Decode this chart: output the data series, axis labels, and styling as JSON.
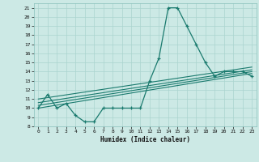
{
  "xlabel": "Humidex (Indice chaleur)",
  "background_color": "#cce9e5",
  "grid_color": "#aad4cf",
  "line_color": "#1a7a6e",
  "xlim": [
    -0.5,
    23.5
  ],
  "ylim": [
    8,
    21.5
  ],
  "xticks": [
    0,
    1,
    2,
    3,
    4,
    5,
    6,
    7,
    8,
    9,
    10,
    11,
    12,
    13,
    14,
    15,
    16,
    17,
    18,
    19,
    20,
    21,
    22,
    23
  ],
  "yticks": [
    8,
    9,
    10,
    11,
    12,
    13,
    14,
    15,
    16,
    17,
    18,
    19,
    20,
    21
  ],
  "main_x": [
    0,
    1,
    2,
    3,
    4,
    5,
    6,
    7,
    8,
    9,
    10,
    11,
    12,
    13,
    14,
    15,
    16,
    17,
    18,
    19,
    20,
    21,
    22,
    23
  ],
  "main_y": [
    10,
    11.5,
    10,
    10.5,
    9.2,
    8.5,
    8.5,
    10,
    10,
    10,
    10,
    10,
    13,
    15.5,
    21,
    21,
    19,
    17,
    15,
    13.5,
    14,
    14,
    14,
    13.5
  ],
  "line1_x": [
    0,
    23
  ],
  "line1_y": [
    10.0,
    13.8
  ],
  "line2_x": [
    0,
    23
  ],
  "line2_y": [
    10.3,
    14.0
  ],
  "line3_x": [
    0,
    23
  ],
  "line3_y": [
    10.6,
    14.2
  ],
  "line4_x": [
    0,
    23
  ],
  "line4_y": [
    11.0,
    14.5
  ]
}
